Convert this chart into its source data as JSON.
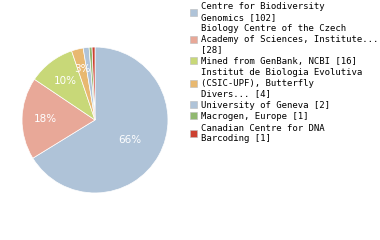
{
  "labels": [
    "Centre for Biodiversity\nGenomics [102]",
    "Biology Centre of the Czech\nAcademy of Sciences, Institute...\n[28]",
    "Mined from GenBank, NCBI [16]",
    "Institut de Biologia Evolutiva\n(CSIC-UPF), Butterfly\nDivers... [4]",
    "University of Geneva [2]",
    "Macrogen, Europe [1]",
    "Canadian Centre for DNA\nBarcoding [1]"
  ],
  "values": [
    102,
    28,
    16,
    4,
    2,
    1,
    1
  ],
  "colors": [
    "#afc3d8",
    "#e8a898",
    "#c8d878",
    "#e8b870",
    "#afc3d8",
    "#90b870",
    "#cc4030"
  ],
  "fontsize_legend": 6.5,
  "fontsize_pct": 7.5,
  "pct_color": "white",
  "fig_bg": "white"
}
